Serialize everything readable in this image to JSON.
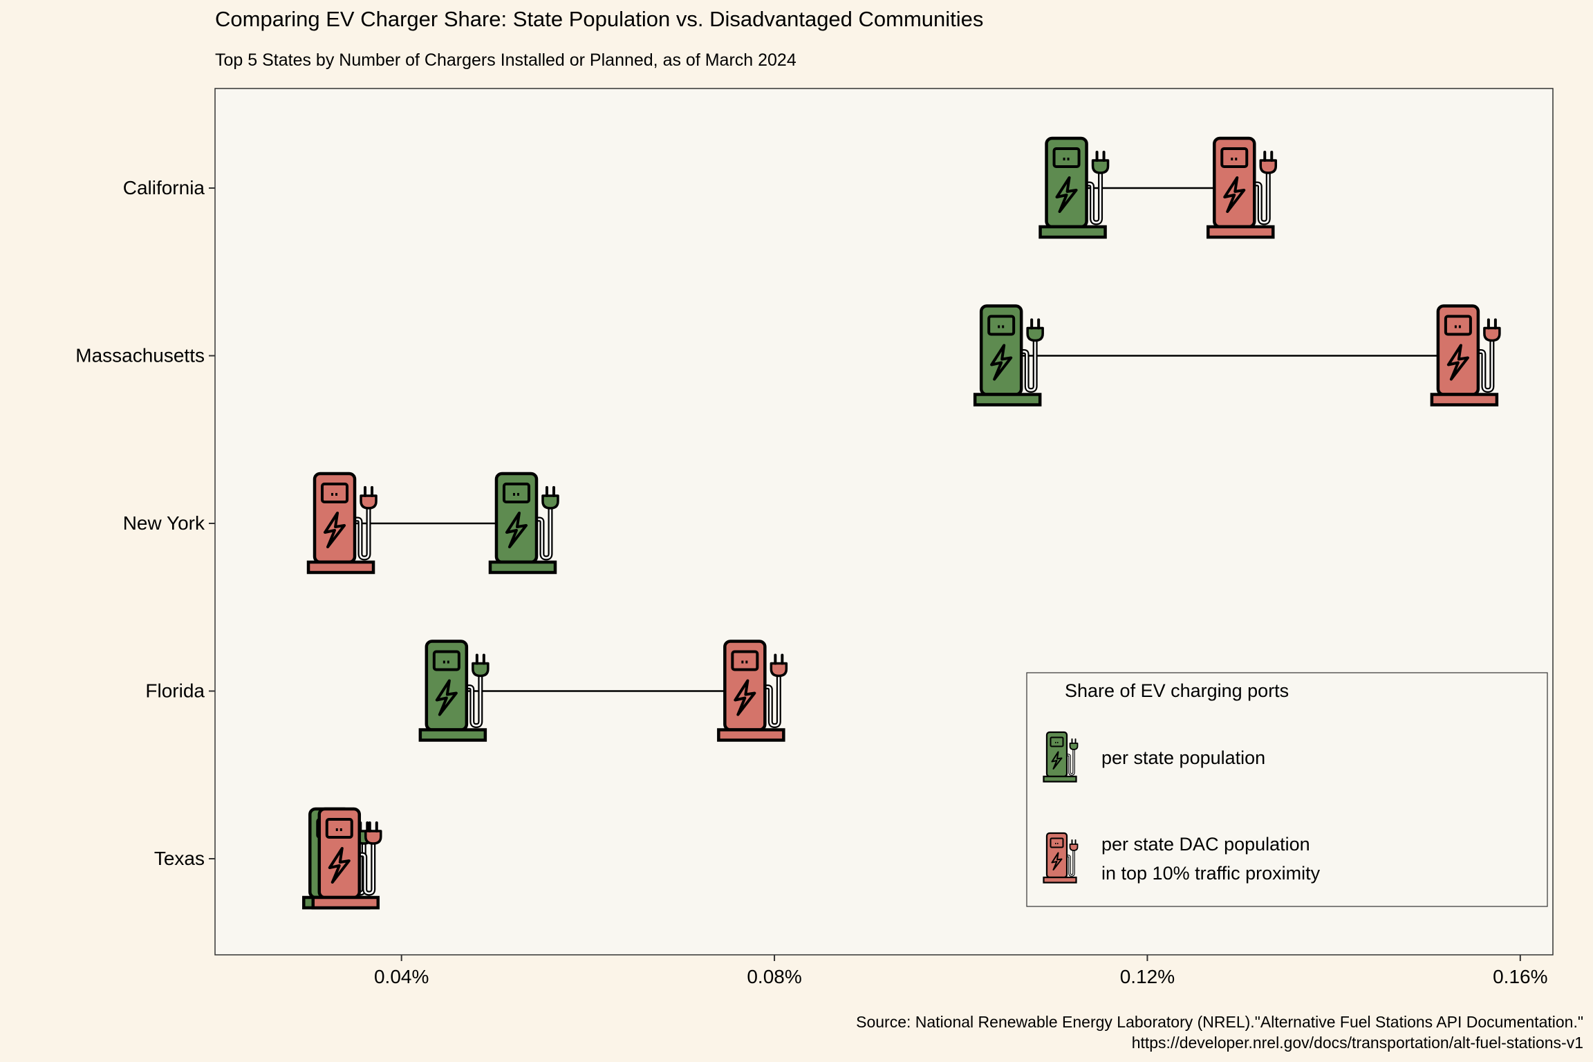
{
  "chart_data": {
    "type": "dumbbell",
    "title": "Comparing EV Charger Share: State Population vs. Disadvantaged Communities",
    "subtitle": "Top 5 States by Number of Chargers Installed or Planned, as of March 2024",
    "xlabel": "",
    "ylabel": "",
    "xlim": [
      0.0002,
      0.001635
    ],
    "x_ticks": [
      0.0004,
      0.0008,
      0.0012,
      0.0016
    ],
    "x_tick_labels": [
      "0.04%",
      "0.08%",
      "0.12%",
      "0.16%"
    ],
    "categories": [
      "California",
      "Massachusetts",
      "New York",
      "Florida",
      "Texas"
    ],
    "series": [
      {
        "key": "pop",
        "color": "#5e8b50",
        "values": [
          0.00112,
          0.00105,
          0.00053,
          0.000455,
          0.00033
        ]
      },
      {
        "key": "dac",
        "color": "#d4746a",
        "values": [
          0.0013,
          0.00154,
          0.000335,
          0.000775,
          0.00034
        ]
      }
    ],
    "icon": "ev-charger-icon",
    "grid": false,
    "legend": {
      "title": "Share of EV charging ports",
      "position": "bottom-right",
      "items": [
        {
          "label_lines": [
            "per state population"
          ],
          "color": "#5e8b50"
        },
        {
          "label_lines": [
            "per state DAC population",
            "in top 10% traffic proximity"
          ],
          "color": "#d4746a"
        }
      ]
    },
    "caption_lines": [
      "Source: National Renewable Energy Laboratory (NREL).\"Alternative Fuel Stations API Documentation.\"",
      "https://developer.nrel.gov/docs/transportation/alt-fuel-stations-v1"
    ]
  }
}
